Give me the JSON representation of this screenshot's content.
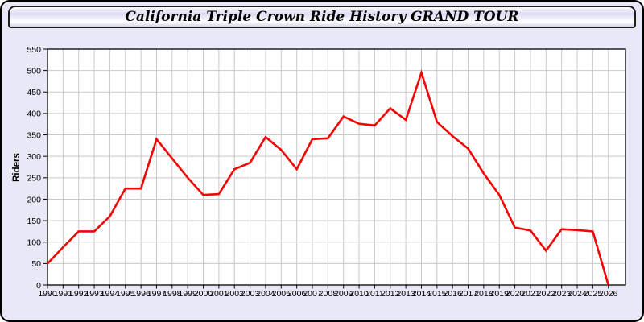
{
  "chart_data": {
    "type": "line",
    "title": "California Triple Crown Ride History GRAND TOUR",
    "xlabel": "",
    "ylabel": "Riders",
    "x": [
      1990,
      1991,
      1992,
      1993,
      1994,
      1995,
      1996,
      1997,
      1998,
      1999,
      2000,
      2001,
      2002,
      2003,
      2004,
      2005,
      2006,
      2007,
      2008,
      2009,
      2010,
      2011,
      2012,
      2013,
      2014,
      2015,
      2016,
      2017,
      2018,
      2019,
      2020,
      2021,
      2022,
      2023,
      2024,
      2025,
      2026
    ],
    "series": [
      {
        "name": "Riders",
        "color": "#f10505",
        "values": [
          50,
          88,
          125,
          125,
          160,
          225,
          225,
          340,
          295,
          250,
          210,
          212,
          270,
          285,
          345,
          315,
          270,
          340,
          342,
          393,
          376,
          372,
          412,
          385,
          495,
          380,
          347,
          318,
          260,
          210,
          134,
          127,
          80,
          130,
          128,
          125,
          0
        ]
      }
    ],
    "ylim": [
      0,
      550
    ],
    "xlim": [
      1990,
      2027.1
    ],
    "ytick_step": 50,
    "grid": true,
    "legend": "none"
  },
  "colors": {
    "plot_background": "#ffffff",
    "grid": "#c9c9c9",
    "axis": "#000000",
    "tick_label": "#000000",
    "widget_background": "#e8e8f6",
    "line": "#f10505"
  }
}
